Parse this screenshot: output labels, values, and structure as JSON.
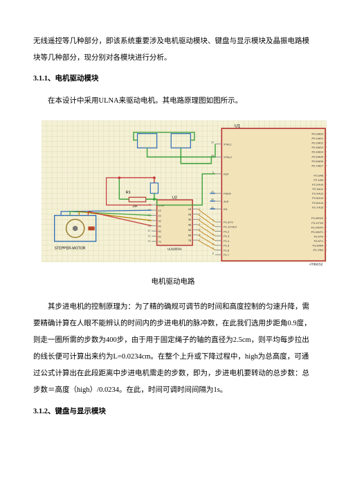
{
  "para_intro": "无线遥控等几种部分，即该系统重要涉及电机驱动模块、键盘与显示模块及晶振电路模块等几种部分，现分别对各模块进行分析。",
  "heading_311": "3.1.1、电机驱动模块",
  "para_311_a": "在本设计中采用ULNA来驱动电机。其电路原理图如图所示。",
  "caption_circuit": "电机驱动电路",
  "para_311_b": "其步进电机的控制原理为：为了精的确规可调节的时间和高度控制的匀速升降，需要精确计算在人眼不能辨认的时间内的步进电机的脉冲数，在此我们选用步距角0.9度，则走一圈所需的步数为400步，由于用于固定绳子的轴的直径为2.5cm，则平均每步拉出的线长便可计算出来约为L=0.0234cm。在整个上升或下降过程中，high为总高度，可通过公式计算出在此段距离中步进电机需走的步数，即为，步进电机要转动的总步数：总步数＝高度（high）/0.0234。在此，时间可调时间间隔为1s。",
  "heading_312": "3.1.2、键盘与显示模块",
  "circuit": {
    "type": "schematic",
    "background_color": "#f4f1d6",
    "grid_color": "#d9d4a8",
    "wire_colors": {
      "green": "#3aa03a",
      "red": "#c63a3a",
      "blue": "#2b6bb5",
      "gray": "#888888"
    },
    "ic_fill": "#f2e3b9",
    "ic_border": "#b83838",
    "labels": {
      "U1": "U1",
      "U2": "U2",
      "R1": "R1",
      "R1_val": "10k",
      "U2_chip": "ULN2003A",
      "U1_chip": "AT89C52",
      "motor": "STEPPER-MOTOR",
      "U1_pins_left": [
        "XTAL1",
        "XTAL2",
        "RST",
        "PSEN",
        "ALE",
        "EA"
      ],
      "U1_pins_right_top": [
        "P0.0/AD0",
        "P0.1/AD1",
        "P0.2/AD2",
        "P0.3/AD3",
        "P0.4/AD4",
        "P0.5/AD5",
        "P0.6/AD6",
        "P0.7/AD7"
      ],
      "U1_pins_right_mid": [
        "P2.0/A8",
        "P2.1/A9",
        "P2.2/A10",
        "P2.3/A11",
        "P2.4/A12",
        "P2.5/A13",
        "P2.6/A14",
        "P2.7/A15"
      ],
      "U1_pins_right_bot": [
        "P3.0/RXD",
        "P3.1/TXD",
        "P3.2/INT0",
        "P3.3/INT1",
        "P3.4/T0",
        "P3.5/T1",
        "P3.6/WR",
        "P3.7/RD"
      ],
      "U1_pins_p1": [
        "P1.0/T2",
        "P1.1/T2EX",
        "P1.2",
        "P1.3",
        "P1.4",
        "P1.5",
        "P1.6",
        "P1.7"
      ],
      "U2_left": [
        "COM",
        "1C",
        "2C",
        "3C",
        "4C",
        "5C",
        "6C",
        "7C"
      ],
      "U2_right": [
        "1B",
        "2B",
        "3B",
        "4B",
        "5B",
        "6B",
        "7B"
      ],
      "U1_left_nums": [
        "19",
        "18",
        "9",
        "29",
        "30",
        "31"
      ],
      "U2_left_nums": [
        "9",
        "16",
        "15",
        "14",
        "13",
        "12",
        "11",
        "10"
      ],
      "U2_right_nums": [
        "1",
        "2",
        "3",
        "4",
        "5",
        "6",
        "7"
      ],
      "U1_p1_nums": [
        "1",
        "2",
        "3",
        "4",
        "5",
        "6",
        "7",
        "8"
      ]
    }
  }
}
